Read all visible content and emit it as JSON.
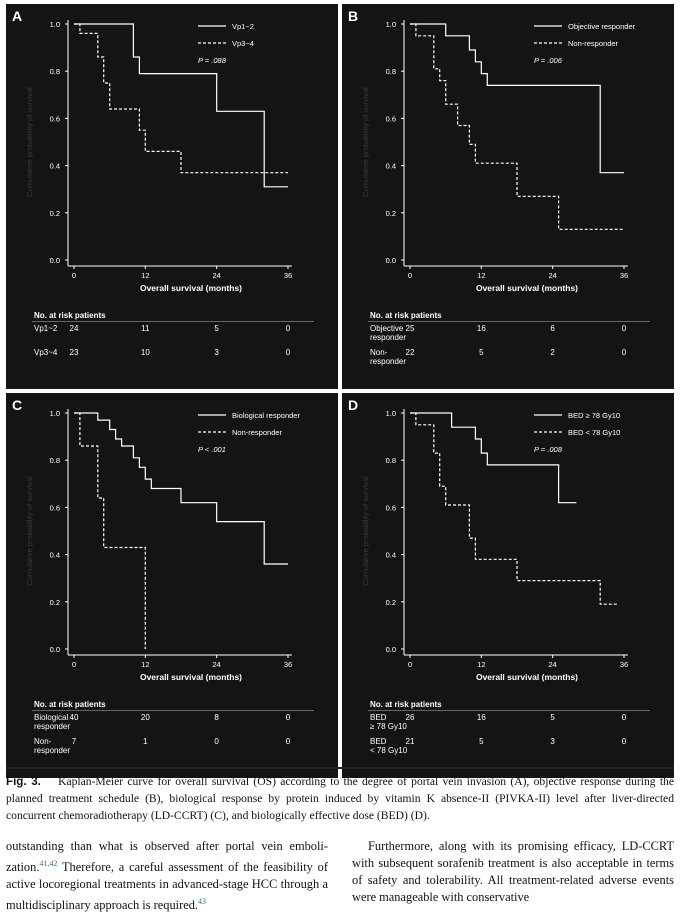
{
  "chart_data": [
    {
      "type": "line",
      "panel_label": "A",
      "xlabel": "Overall survival (months)",
      "ylabel": "Cumulative probability of survival",
      "xlim": [
        0,
        36
      ],
      "ylim": [
        0,
        1
      ],
      "xticks": [
        "0",
        "12",
        "24",
        "36"
      ],
      "yticks": [
        "0.0",
        "0.2",
        "0.4",
        "0.6",
        "0.8",
        "1.0"
      ],
      "pvalue": "P = .088",
      "legend_position": "top-right",
      "series": [
        {
          "name": "Vp1~2",
          "style": "solid",
          "points": [
            [
              0,
              1.0
            ],
            [
              10,
              1.0
            ],
            [
              10,
              0.86
            ],
            [
              11,
              0.86
            ],
            [
              11,
              0.79
            ],
            [
              24,
              0.79
            ],
            [
              24,
              0.63
            ],
            [
              32,
              0.63
            ],
            [
              32,
              0.31
            ],
            [
              36,
              0.31
            ]
          ]
        },
        {
          "name": "Vp3~4",
          "style": "dashed",
          "points": [
            [
              0,
              1.0
            ],
            [
              1,
              1.0
            ],
            [
              1,
              0.96
            ],
            [
              4,
              0.96
            ],
            [
              4,
              0.86
            ],
            [
              5,
              0.86
            ],
            [
              5,
              0.75
            ],
            [
              6,
              0.75
            ],
            [
              6,
              0.64
            ],
            [
              11,
              0.64
            ],
            [
              11,
              0.55
            ],
            [
              12,
              0.55
            ],
            [
              12,
              0.46
            ],
            [
              18,
              0.46
            ],
            [
              18,
              0.37
            ],
            [
              36,
              0.37
            ]
          ]
        }
      ],
      "risk_table": {
        "header": "No. at risk patients",
        "rows": [
          {
            "label": "Vp1~2",
            "values": [
              "24",
              "11",
              "5",
              "0"
            ]
          },
          {
            "label": "Vp3~4",
            "values": [
              "23",
              "10",
              "3",
              "0"
            ]
          }
        ]
      }
    },
    {
      "type": "line",
      "panel_label": "B",
      "xlabel": "Overall survival (months)",
      "ylabel": "Cumulative probability of survival",
      "xlim": [
        0,
        36
      ],
      "ylim": [
        0,
        1
      ],
      "xticks": [
        "0",
        "12",
        "24",
        "36"
      ],
      "yticks": [
        "0.0",
        "0.2",
        "0.4",
        "0.6",
        "0.8",
        "1.0"
      ],
      "pvalue": "P = .006",
      "legend_position": "top-right",
      "series": [
        {
          "name": "Objective responder",
          "style": "solid",
          "points": [
            [
              0,
              1.0
            ],
            [
              6,
              1.0
            ],
            [
              6,
              0.95
            ],
            [
              10,
              0.95
            ],
            [
              10,
              0.89
            ],
            [
              11,
              0.89
            ],
            [
              11,
              0.84
            ],
            [
              12,
              0.84
            ],
            [
              12,
              0.79
            ],
            [
              13,
              0.79
            ],
            [
              13,
              0.74
            ],
            [
              32,
              0.74
            ],
            [
              32,
              0.37
            ],
            [
              36,
              0.37
            ]
          ]
        },
        {
          "name": "Non-responder",
          "style": "dashed",
          "points": [
            [
              0,
              1.0
            ],
            [
              1,
              1.0
            ],
            [
              1,
              0.95
            ],
            [
              4,
              0.95
            ],
            [
              4,
              0.81
            ],
            [
              5,
              0.81
            ],
            [
              5,
              0.76
            ],
            [
              6,
              0.76
            ],
            [
              6,
              0.66
            ],
            [
              8,
              0.66
            ],
            [
              8,
              0.57
            ],
            [
              10,
              0.57
            ],
            [
              10,
              0.49
            ],
            [
              11,
              0.49
            ],
            [
              11,
              0.41
            ],
            [
              18,
              0.41
            ],
            [
              18,
              0.27
            ],
            [
              25,
              0.27
            ],
            [
              25,
              0.13
            ],
            [
              36,
              0.13
            ]
          ]
        }
      ],
      "risk_table": {
        "header": "No. at risk patients",
        "rows": [
          {
            "label": "Objective responder",
            "values": [
              "25",
              "16",
              "6",
              "0"
            ]
          },
          {
            "label": "Non-responder",
            "values": [
              "22",
              "5",
              "2",
              "0"
            ]
          }
        ]
      }
    },
    {
      "type": "line",
      "panel_label": "C",
      "xlabel": "Overall survival (months)",
      "ylabel": "Cumulative probability of survival",
      "xlim": [
        0,
        36
      ],
      "ylim": [
        0,
        1
      ],
      "xticks": [
        "0",
        "12",
        "24",
        "36"
      ],
      "yticks": [
        "0.0",
        "0.2",
        "0.4",
        "0.6",
        "0.8",
        "1.0"
      ],
      "pvalue": "P < .001",
      "legend_position": "top-right",
      "series": [
        {
          "name": "Biological responder",
          "style": "solid",
          "points": [
            [
              0,
              1.0
            ],
            [
              4,
              1.0
            ],
            [
              4,
              0.97
            ],
            [
              6,
              0.97
            ],
            [
              6,
              0.93
            ],
            [
              7,
              0.93
            ],
            [
              7,
              0.89
            ],
            [
              8,
              0.89
            ],
            [
              8,
              0.86
            ],
            [
              10,
              0.86
            ],
            [
              10,
              0.81
            ],
            [
              11,
              0.81
            ],
            [
              11,
              0.77
            ],
            [
              12,
              0.77
            ],
            [
              12,
              0.72
            ],
            [
              13,
              0.72
            ],
            [
              13,
              0.68
            ],
            [
              18,
              0.68
            ],
            [
              18,
              0.62
            ],
            [
              24,
              0.62
            ],
            [
              24,
              0.54
            ],
            [
              32,
              0.54
            ],
            [
              32,
              0.36
            ],
            [
              36,
              0.36
            ]
          ]
        },
        {
          "name": "Non-responder",
          "style": "dashed",
          "points": [
            [
              0,
              1.0
            ],
            [
              1,
              1.0
            ],
            [
              1,
              0.86
            ],
            [
              4,
              0.86
            ],
            [
              4,
              0.64
            ],
            [
              5,
              0.64
            ],
            [
              5,
              0.43
            ],
            [
              12,
              0.43
            ],
            [
              12,
              0.0
            ]
          ]
        }
      ],
      "risk_table": {
        "header": "No. at risk patients",
        "rows": [
          {
            "label": "Biological responder",
            "values": [
              "40",
              "20",
              "8",
              "0"
            ]
          },
          {
            "label": "Non-responder",
            "values": [
              "7",
              "1",
              "0",
              "0"
            ]
          }
        ]
      }
    },
    {
      "type": "line",
      "panel_label": "D",
      "xlabel": "Overall survival (months)",
      "ylabel": "Cumulative probability of survival",
      "xlim": [
        0,
        36
      ],
      "ylim": [
        0,
        1
      ],
      "xticks": [
        "0",
        "12",
        "24",
        "36"
      ],
      "yticks": [
        "0.0",
        "0.2",
        "0.4",
        "0.6",
        "0.8",
        "1.0"
      ],
      "pvalue": "P = .008",
      "legend_position": "top-right",
      "series": [
        {
          "name": "BED ≥ 78 Gy10",
          "style": "solid",
          "points": [
            [
              0,
              1.0
            ],
            [
              7,
              1.0
            ],
            [
              7,
              0.94
            ],
            [
              11,
              0.94
            ],
            [
              11,
              0.89
            ],
            [
              12,
              0.89
            ],
            [
              12,
              0.83
            ],
            [
              13,
              0.83
            ],
            [
              13,
              0.78
            ],
            [
              25,
              0.78
            ],
            [
              25,
              0.62
            ],
            [
              28,
              0.62
            ]
          ]
        },
        {
          "name": "BED < 78 Gy10",
          "style": "dashed",
          "points": [
            [
              0,
              1.0
            ],
            [
              1,
              1.0
            ],
            [
              1,
              0.95
            ],
            [
              4,
              0.95
            ],
            [
              4,
              0.83
            ],
            [
              5,
              0.83
            ],
            [
              5,
              0.69
            ],
            [
              6,
              0.69
            ],
            [
              6,
              0.61
            ],
            [
              10,
              0.61
            ],
            [
              10,
              0.47
            ],
            [
              11,
              0.47
            ],
            [
              11,
              0.38
            ],
            [
              18,
              0.38
            ],
            [
              18,
              0.29
            ],
            [
              32,
              0.29
            ],
            [
              32,
              0.19
            ],
            [
              35,
              0.19
            ]
          ]
        }
      ],
      "risk_table": {
        "header": "No. at risk patients",
        "rows": [
          {
            "label": "BED ≥ 78 Gy10",
            "values": [
              "26",
              "16",
              "5",
              "0"
            ]
          },
          {
            "label": "BED < 78 Gy10",
            "values": [
              "21",
              "5",
              "3",
              "0"
            ]
          }
        ]
      }
    }
  ],
  "caption": {
    "label": "Fig. 3.",
    "text": "Kaplan-Meier curve for overall survival (OS) according to the degree of portal vein invasion (A), objective response during the planned treatment schedule (B), biological response by protein induced by vitamin K absence-II (PIVKA-II) level after liver-directed concurrent chemoradiotherapy (LD-CCRT) (C), and biologically effective dose (BED) (D)."
  },
  "body_left": {
    "p1": "outstanding than what is observed after portal vein emboli-zation.",
    "ref1": "41,42",
    "p2": " Therefore, a careful assessment of the feasibility of active locoregional treatments in advanced-stage HCC through a multidisciplinary approach is required.",
    "ref2": "43"
  },
  "body_right": {
    "text": "Furthermore, along with its promising efficacy, LD-CCRT with subsequent sorafenib treatment is also acceptable in terms of safety and tolerability. All treatment-related adverse events were manageable with conservative"
  }
}
